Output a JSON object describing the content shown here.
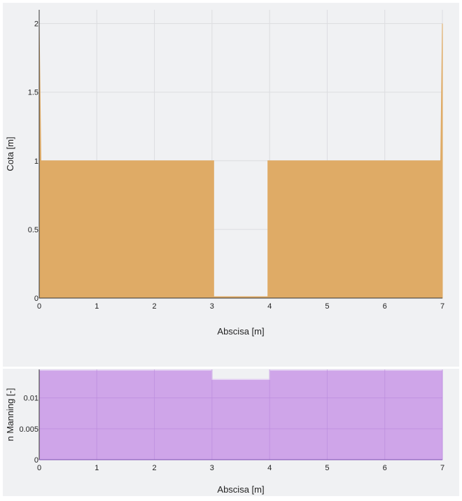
{
  "chart_data": [
    {
      "type": "area",
      "xlabel": "Abscisa [m]",
      "ylabel": "Cota [m]",
      "xlim": [
        0,
        7
      ],
      "ylim": [
        0,
        2.1
      ],
      "xticks": [
        "0",
        "1",
        "2",
        "3",
        "4",
        "5",
        "6",
        "7"
      ],
      "yticks": [
        "0",
        "0.5",
        "1",
        "1.5",
        "2"
      ],
      "grid": true,
      "fill_color": "#dfab66",
      "x": [
        0,
        0.03,
        3.03,
        3.03,
        3.97,
        3.97,
        6.97,
        7
      ],
      "y": [
        2,
        1,
        1,
        0.01,
        0.01,
        1,
        1,
        2
      ]
    },
    {
      "type": "area",
      "xlabel": "Abscisa [m]",
      "ylabel": "n Manning [-]",
      "xlim": [
        0,
        7
      ],
      "ylim": [
        0,
        0.0146
      ],
      "xticks": [
        "0",
        "1",
        "2",
        "3",
        "4",
        "5",
        "6",
        "7"
      ],
      "yticks": [
        "0",
        "0.005",
        "0.01"
      ],
      "grid": true,
      "fill_color": "#cca0e8",
      "line_color": "#8a5cc0",
      "x": [
        0,
        3,
        3,
        4,
        4,
        7
      ],
      "y": [
        0.0145,
        0.0145,
        0.013,
        0.013,
        0.0145,
        0.0145
      ]
    }
  ]
}
